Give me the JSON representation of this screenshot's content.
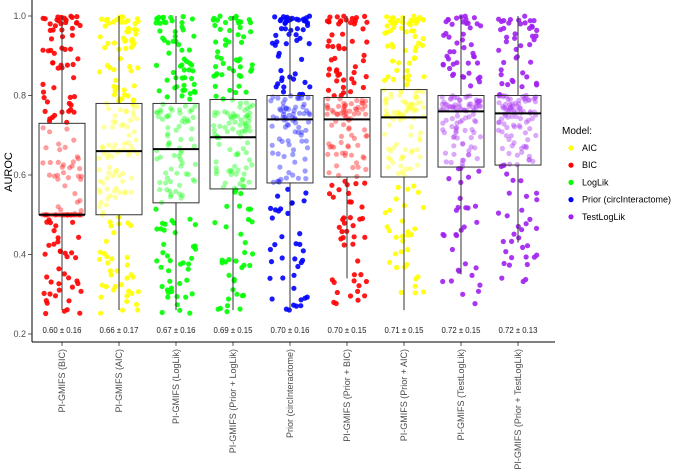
{
  "chart_data": {
    "type": "box",
    "ylabel": "AUROC",
    "xlabel": "",
    "ylim": [
      0.2,
      1.0
    ],
    "yticks": [
      "0.2",
      "0.4",
      "0.6",
      "0.8",
      "1.0"
    ],
    "ytick_values": [
      0.2,
      0.4,
      0.6,
      0.8,
      1.0
    ],
    "legend": {
      "title": "Model:",
      "placement": "right",
      "entries": [
        {
          "label": "AIC",
          "color": "#ffff00"
        },
        {
          "label": "BIC",
          "color": "#ff0000"
        },
        {
          "label": "LogLik",
          "color": "#00ff00"
        },
        {
          "label": "Prior (circInteractome)",
          "color": "#0000ff"
        },
        {
          "label": "TestLogLik",
          "color": "#a020f0"
        }
      ]
    },
    "series": [
      {
        "name": "PI-GMIFS (BIC)",
        "model": "BIC",
        "q1": 0.5,
        "median": 0.5,
        "q3": 0.73,
        "whisker_low": 0.26,
        "whisker_high": 1.0,
        "annotation": "0.60 ± 0.16",
        "ymin_points": 0.25
      },
      {
        "name": "PI-GMIFS (AIC)",
        "model": "AIC",
        "q1": 0.5,
        "median": 0.66,
        "q3": 0.78,
        "whisker_low": 0.26,
        "whisker_high": 1.0,
        "annotation": "0.66 ± 0.17",
        "ymin_points": 0.25
      },
      {
        "name": "PI-GMIFS (LogLik)",
        "model": "LogLik",
        "q1": 0.53,
        "median": 0.665,
        "q3": 0.78,
        "whisker_low": 0.26,
        "whisker_high": 1.0,
        "annotation": "0.67 ± 0.16",
        "ymin_points": 0.25
      },
      {
        "name": "PI-GMIFS (Prior + LogLik)",
        "model": "LogLik",
        "q1": 0.565,
        "median": 0.695,
        "q3": 0.79,
        "whisker_low": 0.26,
        "whisker_high": 1.0,
        "annotation": "0.69 ± 0.15",
        "ymin_points": 0.25
      },
      {
        "name": "Prior (circInteractome)",
        "model": "Prior (circInteractome)",
        "q1": 0.58,
        "median": 0.74,
        "q3": 0.8,
        "whisker_low": 0.26,
        "whisker_high": 1.0,
        "annotation": "0.70 ± 0.16",
        "ymin_points": 0.25
      },
      {
        "name": "PI-GMIFS (Prior + BIC)",
        "model": "BIC",
        "q1": 0.595,
        "median": 0.74,
        "q3": 0.795,
        "whisker_low": 0.34,
        "whisker_high": 1.0,
        "annotation": "0.70 ± 0.15",
        "ymin_points": 0.26
      },
      {
        "name": "PI-GMIFS (Prior + AIC)",
        "model": "AIC",
        "q1": 0.595,
        "median": 0.745,
        "q3": 0.815,
        "whisker_low": 0.26,
        "whisker_high": 1.0,
        "annotation": "0.71 ± 0.15",
        "ymin_points": 0.3
      },
      {
        "name": "PI-GMIFS (TestLogLik)",
        "model": "TestLogLik",
        "q1": 0.62,
        "median": 0.76,
        "q3": 0.8,
        "whisker_low": 0.35,
        "whisker_high": 1.0,
        "annotation": "0.72 ± 0.15",
        "ymin_points": 0.26
      },
      {
        "name": "PI-GMIFS (Prior + TestLogLik)",
        "model": "TestLogLik",
        "q1": 0.625,
        "median": 0.755,
        "q3": 0.8,
        "whisker_low": 0.43,
        "whisker_high": 1.0,
        "annotation": "0.72 ± 0.13",
        "ymin_points": 0.33
      }
    ]
  }
}
